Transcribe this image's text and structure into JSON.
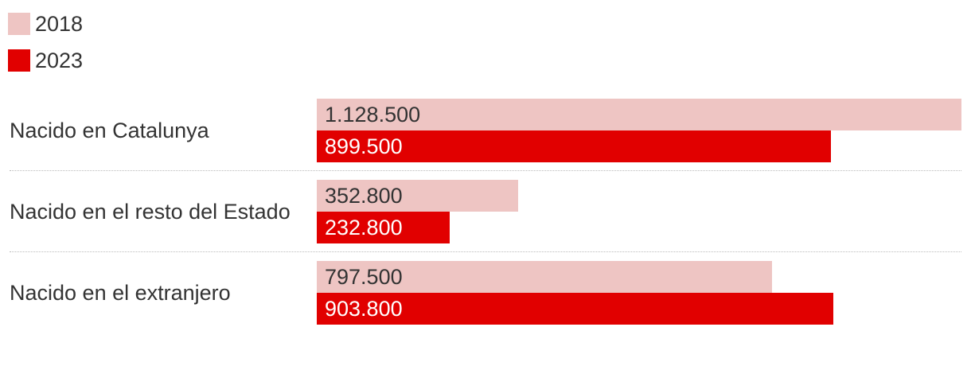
{
  "chart_data": {
    "type": "bar",
    "orientation": "horizontal",
    "categories": [
      "Nacido en Catalunya",
      "Nacido en el resto del Estado",
      "Nacido en el extranjero"
    ],
    "series": [
      {
        "name": "2018",
        "color": "#eec5c3",
        "values": [
          1128500,
          352800,
          797500
        ],
        "labels": [
          "1.128.500",
          "352.800",
          "797.500"
        ]
      },
      {
        "name": "2023",
        "color": "#e10000",
        "values": [
          899500,
          232800,
          903800
        ],
        "labels": [
          "899.500",
          "232.800",
          "903.800"
        ]
      }
    ],
    "xlim": [
      0,
      1128500
    ],
    "legend_position": "top-left",
    "grid": false
  }
}
